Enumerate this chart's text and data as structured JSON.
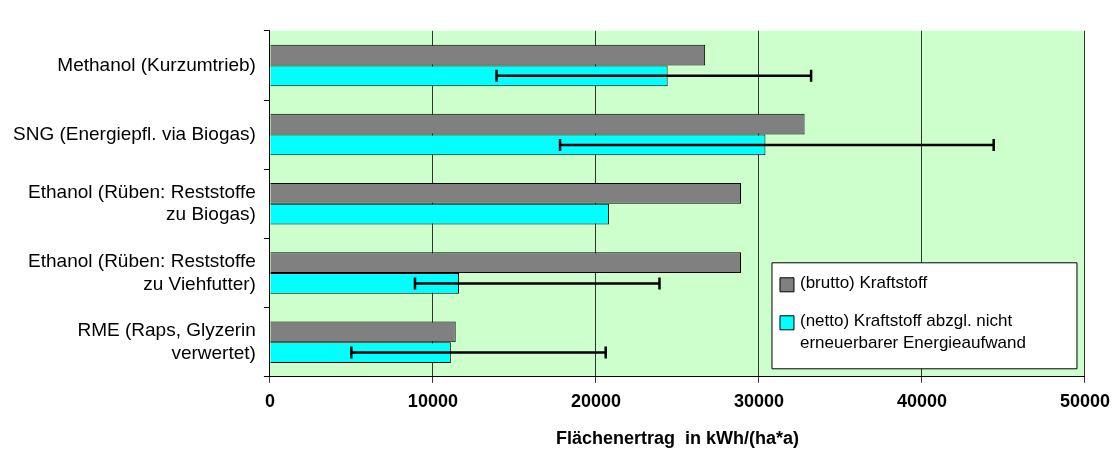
{
  "chart_data": {
    "type": "bar",
    "orientation": "horizontal",
    "xlabel": "Flächenertrag  in kWh/(ha*a)",
    "categories": [
      "Methanol (Kurzumtrieb)",
      "SNG (Energiepfl. via Biogas)",
      "Ethanol (Rüben: Reststoffe zu Biogas)",
      "Ethanol (Rüben: Reststoffe zu Viehfutter)",
      "RME (Raps, Glyzerin verwertet)"
    ],
    "series": [
      {
        "name": "(brutto) Kraftstoff",
        "color": "#808080",
        "values": [
          26700,
          32800,
          28900,
          28900,
          11400
        ]
      },
      {
        "name": "(netto) Kraftstoff abzgl. nicht erneuerbarer Energieaufwand",
        "color": "#00ffff",
        "values": [
          24400,
          30400,
          20800,
          11600,
          11100
        ],
        "errors": [
          [
            13900,
            33200
          ],
          [
            17800,
            44400
          ],
          null,
          [
            8900,
            23900
          ],
          [
            5000,
            20600
          ]
        ]
      }
    ],
    "xlim": [
      0,
      50000
    ],
    "xticks": [
      0,
      10000,
      20000,
      30000,
      40000,
      50000
    ],
    "grid": "x",
    "legend": "bottom right"
  }
}
